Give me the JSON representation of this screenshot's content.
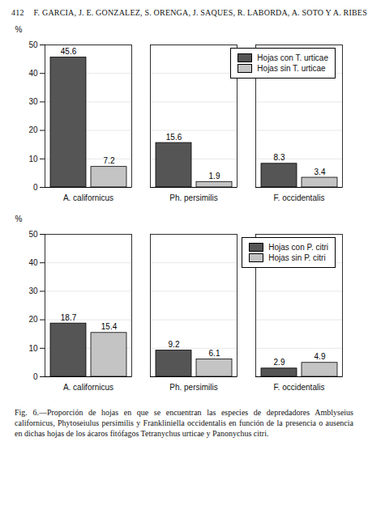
{
  "header": {
    "page": "412",
    "authors": "F. GARCIA, J. E. GONZALEZ, S. ORENGA, J. SAQUES, R. LABORDA, A. SOTO Y A. RIBES"
  },
  "chart_data": [
    {
      "type": "bar",
      "ylabel": "%",
      "categories": [
        "A. californicus",
        "Ph. persimilis",
        "F. occidentalis"
      ],
      "series": [
        {
          "name": "Hojas con T. urticae",
          "color": "#555555",
          "values": [
            45.6,
            15.6,
            8.3
          ]
        },
        {
          "name": "Hojas sin T. urticae",
          "color": "#c4c4c4",
          "values": [
            7.2,
            1.9,
            3.4
          ]
        }
      ],
      "ylim": [
        0,
        50
      ],
      "yticks": [
        0,
        10,
        20,
        30,
        40,
        50
      ],
      "grid": true,
      "data_labels": true,
      "legend": "top-right"
    },
    {
      "type": "bar",
      "ylabel": "%",
      "categories": [
        "A. californicus",
        "Ph. persimilis",
        "F. occidentalis"
      ],
      "series": [
        {
          "name": "Hojas con P. citri",
          "color": "#555555",
          "values": [
            18.7,
            9.2,
            2.9
          ]
        },
        {
          "name": "Hojas sin P. citri",
          "color": "#c4c4c4",
          "values": [
            15.4,
            6.1,
            4.9
          ]
        }
      ],
      "ylim": [
        0,
        50
      ],
      "yticks": [
        0,
        10,
        20,
        30,
        40,
        50
      ],
      "grid": true,
      "data_labels": true,
      "legend": "top-right"
    }
  ],
  "caption": "Fig. 6.—Proporción de hojas en que se encuentran las especies de depredadores Amblyseius californicus, Phytoseiulus persimilis y Frankliniella occidentalis en función de la presencia o ausencia en dichas hojas de los ácaros fitófagos Tetranychus urticae y Panonychus citri."
}
